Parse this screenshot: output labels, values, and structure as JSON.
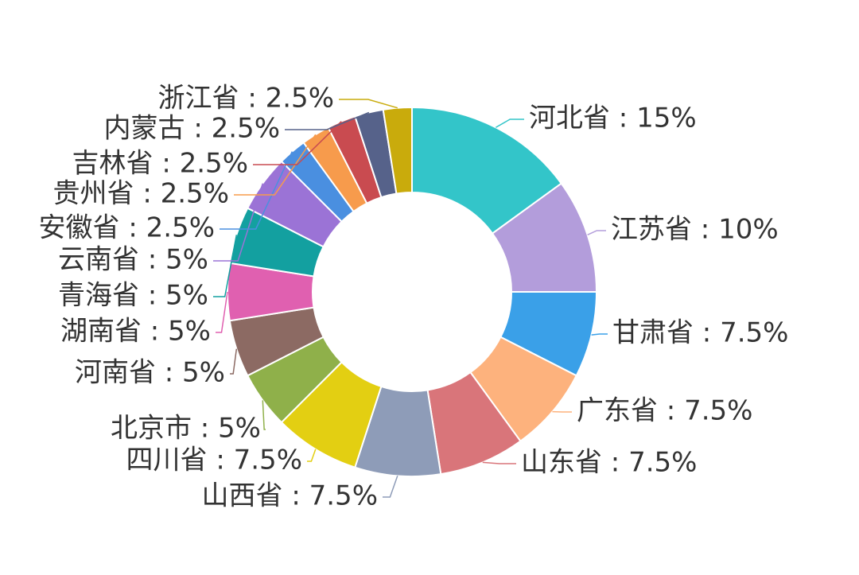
{
  "chart_data": {
    "type": "donut",
    "labels": [
      "河北省 : 15%",
      "江苏省 : 10%",
      "甘肃省 : 7.5%",
      "广东省 : 7.5%",
      "山东省 : 7.5%",
      "山西省 : 7.5%",
      "四川省 : 7.5%",
      "北京市 : 5%",
      "河南省 : 5%",
      "湖南省 : 5%",
      "青海省 : 5%",
      "云南省 : 5%",
      "安徽省 : 2.5%",
      "贵州省 : 2.5%",
      "吉林省 : 2.5%",
      "内蒙古 : 2.5%",
      "浙江省 : 2.5%"
    ],
    "values": [
      15,
      10,
      7.5,
      7.5,
      7.5,
      7.5,
      7.5,
      5,
      5,
      5,
      5,
      5,
      2.5,
      2.5,
      2.5,
      2.5,
      2.5
    ],
    "colors": [
      "#33c5c9",
      "#b39ddb",
      "#3aa0e8",
      "#fdb27d",
      "#d9757a",
      "#8e9cb8",
      "#e3cf12",
      "#8fb04a",
      "#8c6a63",
      "#e060b0",
      "#13a0a0",
      "#9b73d6",
      "#4a8fe0",
      "#f79b4c",
      "#c94b50",
      "#56628a",
      "#c9ab0c"
    ]
  }
}
